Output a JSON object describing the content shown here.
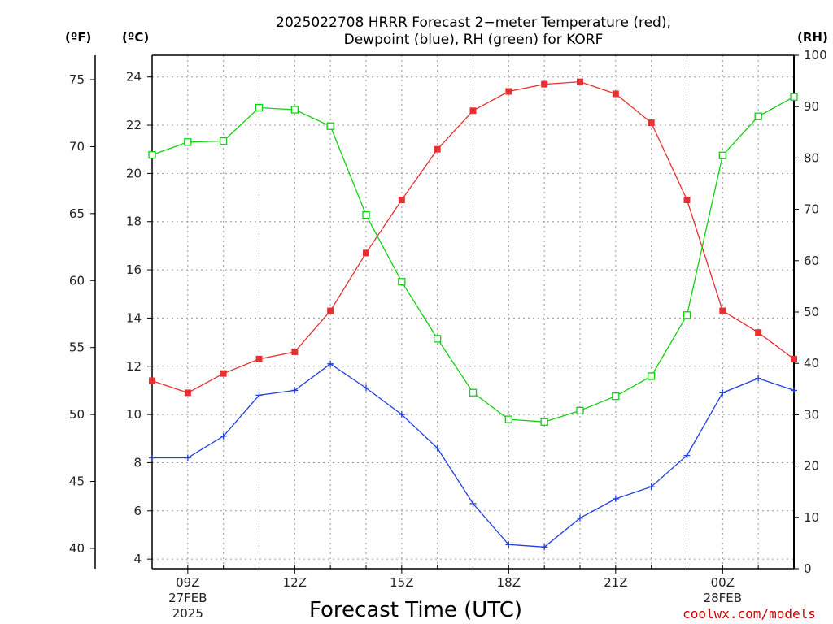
{
  "chart_data": {
    "type": "line",
    "title_line1": "2025022708 HRRR Forecast 2−meter Temperature (red),",
    "title_line2": "Dewpoint (blue), RH (green) for KORF",
    "xlabel": "Forecast Time (UTC)",
    "credit": "coolwx.com/models",
    "axis_units": {
      "fahrenheit": "(ºF)",
      "celsius": "(ºC)",
      "rh": "(RH)"
    },
    "x_tick_labels": [
      {
        "hour": 9,
        "lines": [
          "09Z",
          "27FEB",
          "2025"
        ]
      },
      {
        "hour": 12,
        "lines": [
          "12Z"
        ]
      },
      {
        "hour": 15,
        "lines": [
          "15Z"
        ]
      },
      {
        "hour": 18,
        "lines": [
          "18Z"
        ]
      },
      {
        "hour": 21,
        "lines": [
          "21Z"
        ]
      },
      {
        "hour": 24,
        "lines": [
          "00Z",
          "28FEB"
        ]
      }
    ],
    "xlim": [
      8,
      26
    ],
    "celsius_ylim": [
      3.6,
      24.9
    ],
    "celsius_ticks": [
      "4",
      "6",
      "8",
      "10",
      "12",
      "14",
      "16",
      "18",
      "20",
      "22",
      "24"
    ],
    "fahrenheit_ticks": [
      "40",
      "45",
      "50",
      "55",
      "60",
      "65",
      "70",
      "75"
    ],
    "rh_ylim": [
      0,
      100
    ],
    "rh_ticks": [
      "0",
      "10",
      "20",
      "30",
      "40",
      "50",
      "60",
      "70",
      "80",
      "90",
      "100"
    ],
    "grid": true,
    "x": [
      8,
      9,
      10,
      11,
      12,
      13,
      14,
      15,
      16,
      17,
      18,
      19,
      20,
      21,
      22,
      23,
      24,
      25,
      26
    ],
    "series": [
      {
        "name": "Temperature",
        "axis": "celsius",
        "color": "#e83030",
        "marker": "filled-square",
        "values": [
          11.4,
          10.9,
          11.7,
          12.3,
          12.6,
          14.3,
          16.7,
          18.9,
          21.0,
          22.6,
          23.4,
          23.7,
          23.8,
          23.3,
          22.1,
          18.9,
          14.3,
          13.4,
          12.3
        ]
      },
      {
        "name": "Dewpoint",
        "axis": "celsius",
        "color": "#2040e0",
        "marker": "plus",
        "values": [
          8.2,
          8.2,
          9.1,
          10.8,
          11.0,
          12.1,
          11.1,
          10.0,
          8.6,
          6.3,
          4.6,
          4.5,
          5.7,
          6.5,
          7.0,
          8.3,
          10.9,
          11.5,
          11.0
        ]
      },
      {
        "name": "RH",
        "axis": "rh",
        "color": "#10d010",
        "marker": "open-square",
        "values": [
          80.6,
          83.1,
          83.3,
          89.8,
          89.4,
          86.2,
          68.9,
          55.9,
          44.8,
          34.3,
          29.1,
          28.6,
          30.8,
          33.6,
          37.5,
          49.4,
          80.5,
          88.1,
          91.9
        ]
      }
    ]
  }
}
